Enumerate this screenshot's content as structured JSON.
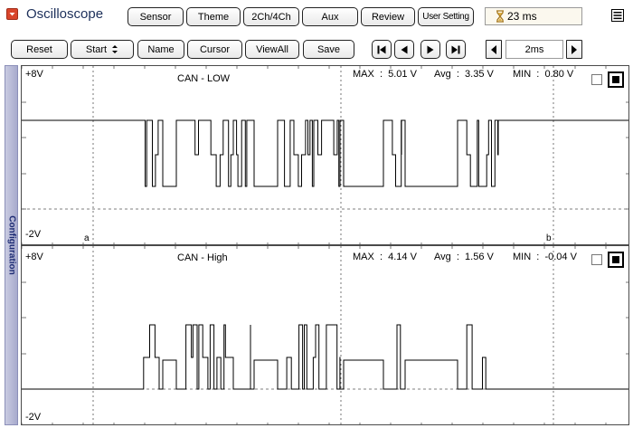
{
  "header": {
    "app_title": "Oscilloscope",
    "tabs": [
      {
        "label": "Sensor"
      },
      {
        "label": "Theme"
      },
      {
        "label": "2Ch/4Ch"
      },
      {
        "label": "Aux"
      },
      {
        "label": "Review"
      },
      {
        "label": "User Setting"
      }
    ],
    "timer_value": "23 ms"
  },
  "toolbar": {
    "reset_label": "Reset",
    "start_label": "Start",
    "name_label": "Name",
    "cursor_label": "Cursor",
    "viewall_label": "ViewAll",
    "save_label": "Save",
    "timebase_value": "2ms"
  },
  "sidebar": {
    "tab_label": "Configuration"
  },
  "channels": [
    {
      "name": "CAN - LOW",
      "top_scale": "+8V",
      "bottom_scale": "-2V",
      "max": "MAX  :  5.01 V",
      "avg": "Avg  :  3.35 V",
      "min": "MIN  :  0.80 V",
      "cursor_a": "a",
      "cursor_b": "b"
    },
    {
      "name": "CAN - High",
      "top_scale": "+8V",
      "bottom_scale": "-2V",
      "max": "MAX  :  4.14 V",
      "avg": "Avg  :  1.56 V",
      "min": "MIN  :  -0.04 V"
    }
  ],
  "colors": {
    "title": "#1c2f5a",
    "menu_icon": "#d9452b",
    "config_tab": "#a7aacd",
    "trace": "#000000"
  }
}
